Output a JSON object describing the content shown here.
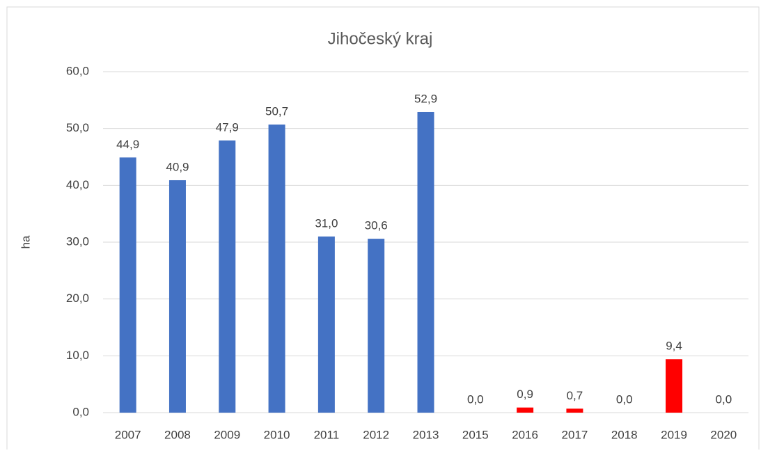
{
  "chart_data": {
    "type": "bar",
    "title": "Jihočeský kraj",
    "y_label": "ha",
    "categories": [
      "2007",
      "2008",
      "2009",
      "2010",
      "2011",
      "2012",
      "2013",
      "2015",
      "2016",
      "2017",
      "2018",
      "2019",
      "2020"
    ],
    "values": [
      44.9,
      40.9,
      47.9,
      50.7,
      31.0,
      30.6,
      52.9,
      0.0,
      0.9,
      0.7,
      0.0,
      9.4,
      0.0
    ],
    "value_labels": [
      "44,9",
      "40,9",
      "47,9",
      "50,7",
      "31,0",
      "30,6",
      "52,9",
      "0,0",
      "0,9",
      "0,7",
      "0,0",
      "9,4",
      "0,0"
    ],
    "colors": [
      "#4472c4",
      "#4472c4",
      "#4472c4",
      "#4472c4",
      "#4472c4",
      "#4472c4",
      "#4472c4",
      "#ff0000",
      "#ff0000",
      "#ff0000",
      "#ff0000",
      "#ff0000",
      "#ff0000"
    ],
    "ylim": [
      0,
      60
    ],
    "yticks": [
      {
        "value": 0,
        "label": "0,0"
      },
      {
        "value": 10,
        "label": "10,0"
      },
      {
        "value": 20,
        "label": "20,0"
      },
      {
        "value": 30,
        "label": "30,0"
      },
      {
        "value": 40,
        "label": "40,0"
      },
      {
        "value": 50,
        "label": "50,0"
      },
      {
        "value": 60,
        "label": "60,0"
      }
    ],
    "grid": true
  }
}
